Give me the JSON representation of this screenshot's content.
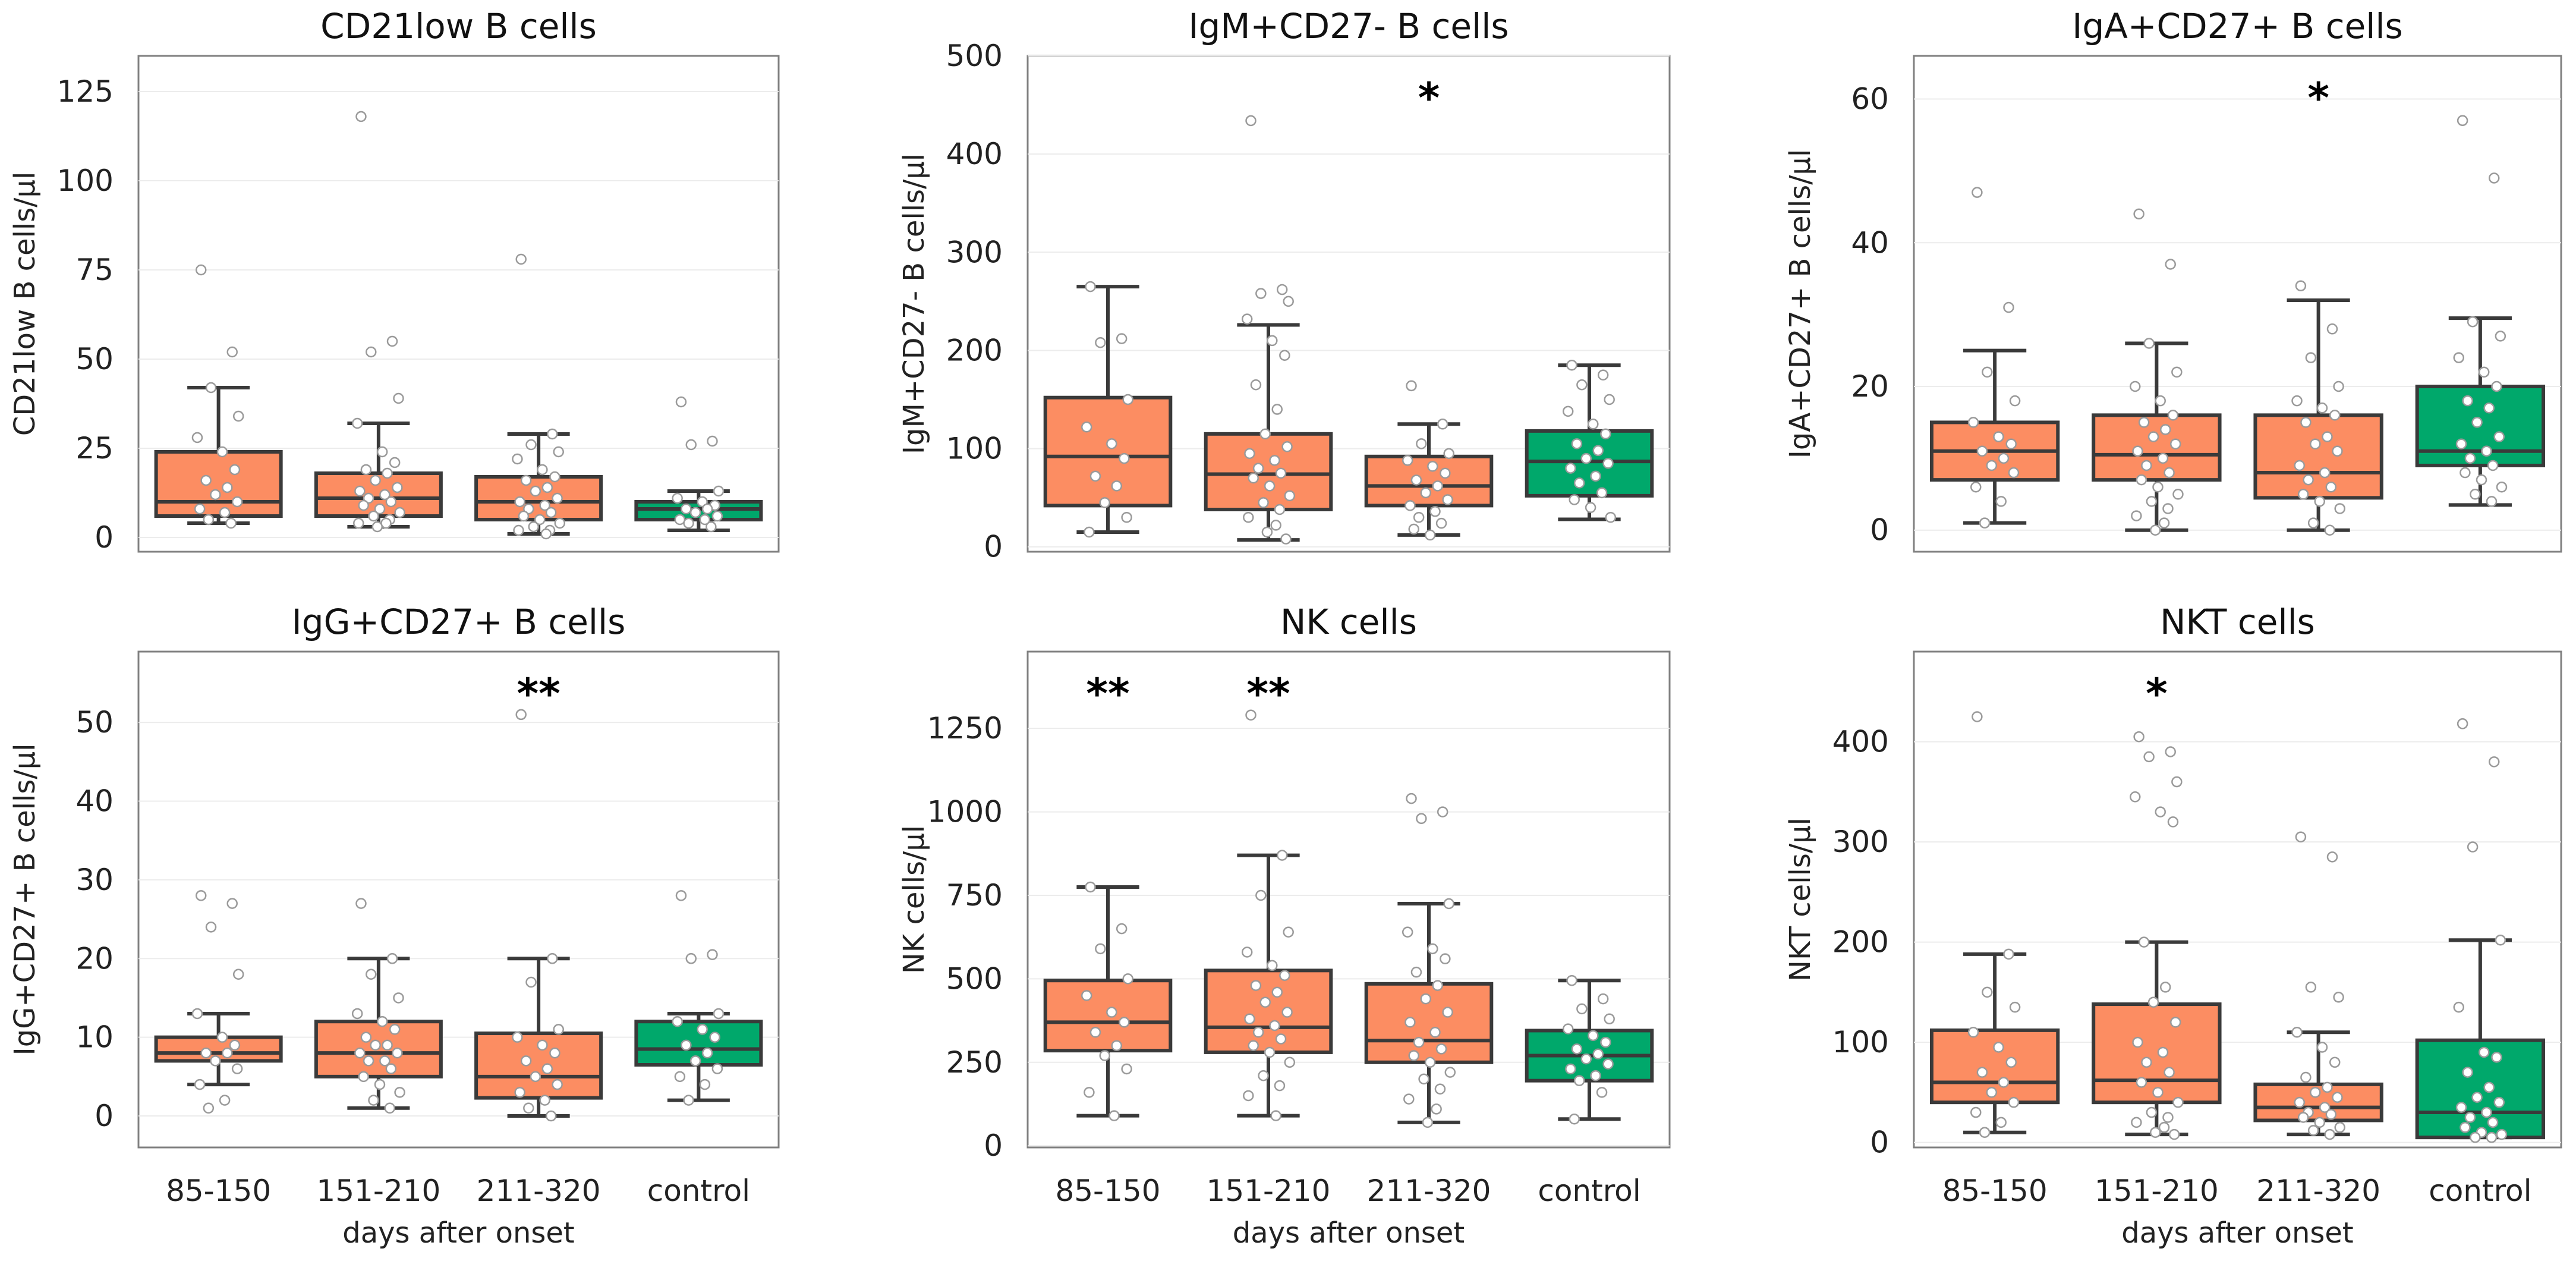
{
  "colors": {
    "patient": "#fc8d62",
    "control": "#00a86b"
  },
  "chart_data": [
    {
      "type": "box",
      "title": "CD21low B cells",
      "ylabel": "CD21low B cells/µl",
      "xlabel": "",
      "ylim": [
        -4,
        135
      ],
      "yticks": [
        0,
        25,
        50,
        75,
        100,
        125
      ],
      "categories": [
        "85-150",
        "151-210",
        "211-320",
        "control"
      ],
      "boxes": [
        {
          "whislo": 4,
          "q1": 6,
          "med": 10,
          "q3": 24,
          "whishi": 42
        },
        {
          "whislo": 3,
          "q1": 6,
          "med": 11,
          "q3": 18,
          "whishi": 32
        },
        {
          "whislo": 1,
          "q1": 5,
          "med": 10,
          "q3": 17,
          "whishi": 29
        },
        {
          "whislo": 2,
          "q1": 5,
          "med": 8,
          "q3": 10,
          "whishi": 13
        }
      ],
      "points": [
        [
          75,
          52,
          42,
          34,
          28,
          24,
          19,
          16,
          14,
          12,
          10,
          8,
          7,
          5,
          4
        ],
        [
          118,
          55,
          52,
          39,
          32,
          24,
          21,
          19,
          18,
          16,
          14,
          13,
          12,
          11,
          10,
          9,
          8,
          7,
          6,
          5,
          4,
          4,
          3
        ],
        [
          78,
          29,
          26,
          24,
          22,
          19,
          17,
          16,
          14,
          13,
          11,
          10,
          9,
          8,
          7,
          6,
          5,
          4,
          3,
          2,
          2,
          1
        ],
        [
          38,
          27,
          26,
          13,
          11,
          10,
          9,
          8,
          8,
          7,
          6,
          5,
          5,
          4,
          3
        ]
      ],
      "significance": [
        "",
        "",
        "",
        ""
      ]
    },
    {
      "type": "box",
      "title": "IgM+CD27- B cells",
      "ylabel": "IgM+CD27- B cells/µl",
      "xlabel": "",
      "ylim": [
        -5,
        500
      ],
      "yticks": [
        0,
        100,
        200,
        300,
        400,
        500
      ],
      "categories": [
        "85-150",
        "151-210",
        "211-320",
        "control"
      ],
      "boxes": [
        {
          "whislo": 15,
          "q1": 42,
          "med": 92,
          "q3": 152,
          "whishi": 265
        },
        {
          "whislo": 7,
          "q1": 38,
          "med": 74,
          "q3": 115,
          "whishi": 226
        },
        {
          "whislo": 12,
          "q1": 42,
          "med": 62,
          "q3": 92,
          "whishi": 125
        },
        {
          "whislo": 28,
          "q1": 52,
          "med": 87,
          "q3": 118,
          "whishi": 185
        }
      ],
      "points": [
        [
          265,
          212,
          208,
          150,
          122,
          105,
          90,
          72,
          62,
          45,
          30,
          15
        ],
        [
          434,
          262,
          258,
          250,
          232,
          210,
          195,
          165,
          140,
          115,
          102,
          95,
          88,
          80,
          75,
          70,
          62,
          52,
          45,
          38,
          30,
          22,
          15,
          8
        ],
        [
          164,
          125,
          105,
          95,
          88,
          82,
          75,
          68,
          62,
          55,
          48,
          42,
          36,
          30,
          24,
          18,
          12
        ],
        [
          185,
          175,
          165,
          150,
          138,
          125,
          115,
          105,
          98,
          90,
          85,
          80,
          72,
          65,
          55,
          48,
          40,
          30
        ]
      ],
      "significance": [
        "",
        "",
        "*",
        ""
      ]
    },
    {
      "type": "box",
      "title": "IgA+CD27+ B cells",
      "ylabel": "IgA+CD27+ B cells/µl",
      "xlabel": "",
      "ylim": [
        -3,
        66
      ],
      "yticks": [
        0,
        20,
        40,
        60
      ],
      "categories": [
        "85-150",
        "151-210",
        "211-320",
        "control"
      ],
      "boxes": [
        {
          "whislo": 1,
          "q1": 7,
          "med": 11,
          "q3": 15,
          "whishi": 25
        },
        {
          "whislo": 0,
          "q1": 7,
          "med": 10.5,
          "q3": 16,
          "whishi": 26
        },
        {
          "whislo": 0,
          "q1": 4.5,
          "med": 8,
          "q3": 16,
          "whishi": 32
        },
        {
          "whislo": 3.5,
          "q1": 9,
          "med": 11,
          "q3": 20,
          "whishi": 29.5
        }
      ],
      "points": [
        [
          47,
          31,
          22,
          18,
          15,
          13,
          12,
          11,
          10,
          9,
          8,
          6,
          4,
          1
        ],
        [
          44,
          37,
          26,
          22,
          20,
          18,
          16,
          15,
          14,
          13,
          12,
          11,
          10,
          9,
          8,
          7,
          6,
          5,
          4,
          3,
          2,
          1,
          0
        ],
        [
          34,
          28,
          24,
          20,
          18,
          17,
          16,
          15,
          13,
          12,
          11,
          9,
          8,
          7,
          6,
          5,
          4,
          3,
          1,
          0
        ],
        [
          57,
          49,
          29,
          27,
          24,
          22,
          20,
          18,
          17,
          15,
          13,
          12,
          11,
          10,
          9,
          8,
          7,
          6,
          5,
          4
        ]
      ],
      "significance": [
        "",
        "",
        "*",
        ""
      ]
    },
    {
      "type": "box",
      "title": "IgG+CD27+ B cells",
      "ylabel": "IgG+CD27+ B cells/µl",
      "xlabel": "days after onset",
      "ylim": [
        -4,
        59
      ],
      "yticks": [
        0,
        10,
        20,
        30,
        40,
        50
      ],
      "categories": [
        "85-150",
        "151-210",
        "211-320",
        "control"
      ],
      "boxes": [
        {
          "whislo": 4,
          "q1": 7,
          "med": 8,
          "q3": 10,
          "whishi": 13
        },
        {
          "whislo": 1,
          "q1": 5,
          "med": 8,
          "q3": 12,
          "whishi": 20
        },
        {
          "whislo": 0,
          "q1": 2.3,
          "med": 5,
          "q3": 10.5,
          "whishi": 20
        },
        {
          "whislo": 2,
          "q1": 6.5,
          "med": 8.5,
          "q3": 12,
          "whishi": 13
        }
      ],
      "points": [
        [
          28,
          27,
          24,
          18,
          13,
          10,
          9,
          8,
          8,
          7,
          6,
          4,
          2,
          1
        ],
        [
          27,
          20,
          18,
          15,
          13,
          12,
          11,
          10,
          9,
          9,
          8,
          8,
          7,
          7,
          6,
          5,
          4,
          3,
          2,
          1
        ],
        [
          51,
          20,
          17,
          11,
          10,
          9,
          8,
          7,
          6,
          5,
          4,
          3,
          2,
          1,
          0
        ],
        [
          28,
          20.5,
          20,
          13,
          12,
          11,
          10,
          9,
          8,
          7,
          6,
          5,
          4,
          2
        ]
      ],
      "significance": [
        "",
        "",
        "**",
        ""
      ]
    },
    {
      "type": "box",
      "title": "NK cells",
      "ylabel": "NK cells/µl",
      "xlabel": "days after onset",
      "ylim": [
        -5,
        1480
      ],
      "yticks": [
        0,
        250,
        500,
        750,
        1000,
        1250
      ],
      "categories": [
        "85-150",
        "151-210",
        "211-320",
        "control"
      ],
      "boxes": [
        {
          "whislo": 90,
          "q1": 285,
          "med": 370,
          "q3": 495,
          "whishi": 775
        },
        {
          "whislo": 90,
          "q1": 280,
          "med": 355,
          "q3": 525,
          "whishi": 870
        },
        {
          "whislo": 70,
          "q1": 250,
          "med": 315,
          "q3": 485,
          "whishi": 725
        },
        {
          "whislo": 80,
          "q1": 195,
          "med": 270,
          "q3": 345,
          "whishi": 495
        }
      ],
      "points": [
        [
          775,
          650,
          590,
          500,
          450,
          400,
          370,
          340,
          300,
          270,
          230,
          160,
          90
        ],
        [
          1290,
          870,
          750,
          640,
          580,
          540,
          510,
          480,
          460,
          430,
          400,
          380,
          360,
          340,
          320,
          300,
          280,
          250,
          210,
          180,
          150,
          90
        ],
        [
          1040,
          1000,
          980,
          725,
          640,
          590,
          560,
          520,
          480,
          440,
          400,
          370,
          340,
          310,
          290,
          270,
          250,
          220,
          200,
          170,
          140,
          110,
          70
        ],
        [
          495,
          440,
          410,
          380,
          350,
          330,
          310,
          290,
          275,
          260,
          245,
          230,
          210,
          195,
          160,
          80
        ]
      ],
      "significance": [
        "**",
        "**",
        "",
        ""
      ]
    },
    {
      "type": "box",
      "title": "NKT cells",
      "ylabel": "NKT cells/µl",
      "xlabel": "days after onset",
      "ylim": [
        -5,
        490
      ],
      "yticks": [
        0,
        100,
        200,
        300,
        400
      ],
      "categories": [
        "85-150",
        "151-210",
        "211-320",
        "control"
      ],
      "boxes": [
        {
          "whislo": 10,
          "q1": 40,
          "med": 60,
          "q3": 112,
          "whishi": 188
        },
        {
          "whislo": 8,
          "q1": 40,
          "med": 62,
          "q3": 138,
          "whishi": 200
        },
        {
          "whislo": 8,
          "q1": 22,
          "med": 35,
          "q3": 58,
          "whishi": 110
        },
        {
          "whislo": 5,
          "q1": 5,
          "med": 30,
          "q3": 102,
          "whishi": 202
        }
      ],
      "points": [
        [
          425,
          188,
          150,
          135,
          110,
          95,
          80,
          70,
          60,
          50,
          40,
          30,
          20,
          10
        ],
        [
          405,
          390,
          385,
          360,
          345,
          330,
          320,
          200,
          155,
          140,
          120,
          100,
          90,
          80,
          70,
          60,
          50,
          40,
          30,
          25,
          20,
          15,
          10,
          8
        ],
        [
          305,
          285,
          155,
          145,
          110,
          95,
          80,
          65,
          55,
          50,
          45,
          40,
          35,
          30,
          28,
          25,
          20,
          15,
          12,
          8
        ],
        [
          418,
          380,
          295,
          202,
          135,
          90,
          85,
          70,
          55,
          45,
          40,
          35,
          30,
          25,
          20,
          15,
          10,
          8,
          5,
          5
        ]
      ],
      "significance": [
        "",
        "*",
        "",
        ""
      ]
    }
  ]
}
